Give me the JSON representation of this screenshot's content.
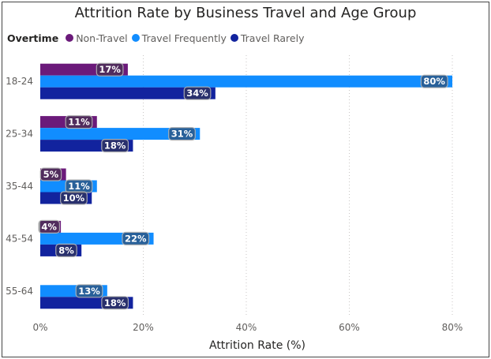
{
  "chart_data": {
    "type": "bar",
    "orientation": "horizontal",
    "title": "Attrition Rate by Business Travel and Age Group",
    "legend_title": "Overtime",
    "legend_position": "top-left",
    "categories": [
      "18-24",
      "25-34",
      "35-44",
      "45-54",
      "55-64"
    ],
    "series": [
      {
        "name": "Non-Travel",
        "color": "#6b1a7a",
        "values": [
          17,
          11,
          5,
          4,
          null
        ],
        "labels": [
          "17%",
          "11%",
          "5%",
          "4%",
          ""
        ]
      },
      {
        "name": "Travel Frequently",
        "color": "#118dff",
        "values": [
          80,
          31,
          11,
          22,
          13
        ],
        "labels": [
          "80%",
          "31%",
          "11%",
          "22%",
          "13%"
        ]
      },
      {
        "name": "Travel Rarely",
        "color": "#12239e",
        "values": [
          34,
          18,
          10,
          8,
          18
        ],
        "labels": [
          "34%",
          "18%",
          "10%",
          "8%",
          "18%"
        ]
      }
    ],
    "xlabel": "Attrition Rate (%)",
    "ylabel": "",
    "xlim": [
      0,
      80
    ],
    "xticks": [
      0,
      20,
      40,
      60,
      80
    ],
    "xtick_labels": [
      "0%",
      "20%",
      "40%",
      "60%",
      "80%"
    ],
    "grid": "vertical dotted"
  }
}
